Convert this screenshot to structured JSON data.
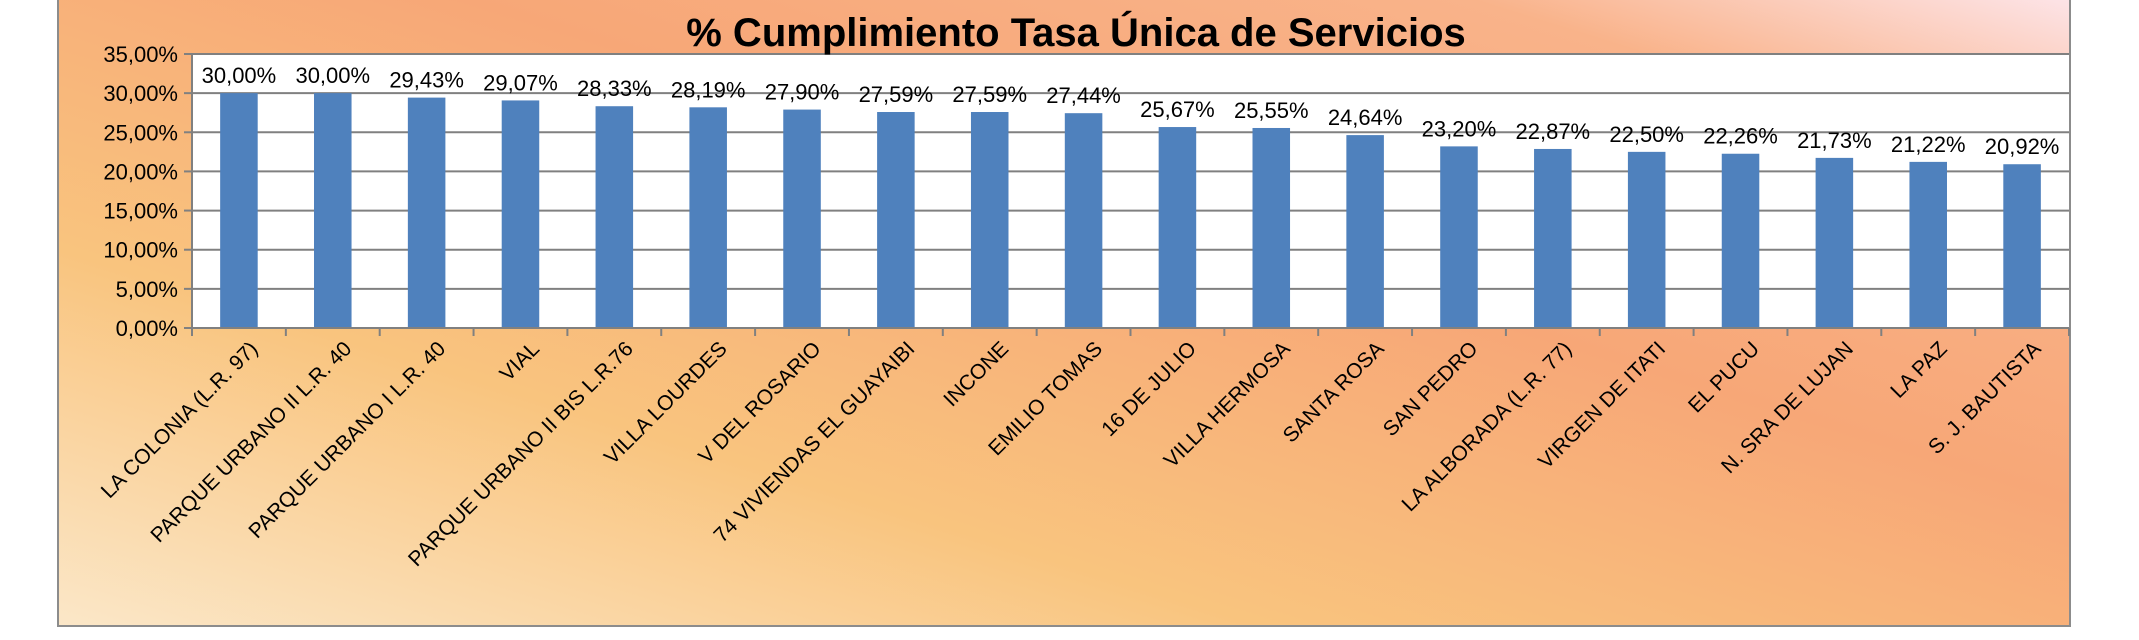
{
  "colors": {
    "bar": "#4F81BD",
    "grid": "#808080",
    "frame": "#8C8C8C",
    "plot_bg": "#FFFFFF",
    "bg_stops": [
      "#FBE7C8",
      "#F9C47E",
      "#F7A777",
      "#F9B38A",
      "#FDE4E8"
    ]
  },
  "chart_data": {
    "type": "bar",
    "title": "% Cumplimiento Tasa Única de Servicios",
    "xlabel": "",
    "ylabel": "",
    "ylim": [
      0,
      35
    ],
    "yticks": [
      "0,00%",
      "5,00%",
      "10,00%",
      "15,00%",
      "20,00%",
      "25,00%",
      "30,00%",
      "35,00%"
    ],
    "ytick_values": [
      0,
      5,
      10,
      15,
      20,
      25,
      30,
      35
    ],
    "grid": true,
    "legend": "none",
    "categories": [
      "LA COLONIA (L.R. 97)",
      "PARQUE URBANO II L.R. 40",
      "PARQUE URBANO I L.R. 40",
      "VIAL",
      "PARQUE URBANO II BIS L.R.76",
      "VILLA LOURDES",
      "V DEL ROSARIO",
      "74 VIVIENDAS EL GUAYAIBI",
      "INCONE",
      "EMILIO TOMAS",
      "16 DE JULIO",
      "VILLA HERMOSA",
      "SANTA ROSA",
      "SAN PEDRO",
      "LA ALBORADA (L.R. 77)",
      "VIRGEN DE ITATI",
      "EL PUCU",
      "N. SRA DE LUJAN",
      "LA PAZ",
      "S. J. BAUTISTA"
    ],
    "values": [
      30.0,
      30.0,
      29.43,
      29.07,
      28.33,
      28.19,
      27.9,
      27.59,
      27.59,
      27.44,
      25.67,
      25.55,
      24.64,
      23.2,
      22.87,
      22.5,
      22.26,
      21.73,
      21.22,
      20.92
    ],
    "data_labels": [
      "30,00%",
      "30,00%",
      "29,43%",
      "29,07%",
      "28,33%",
      "28,19%",
      "27,90%",
      "27,59%",
      "27,59%",
      "27,44%",
      "25,67%",
      "25,55%",
      "24,64%",
      "23,20%",
      "22,87%",
      "22,50%",
      "22,26%",
      "21,73%",
      "21,22%",
      "20,92%"
    ]
  }
}
